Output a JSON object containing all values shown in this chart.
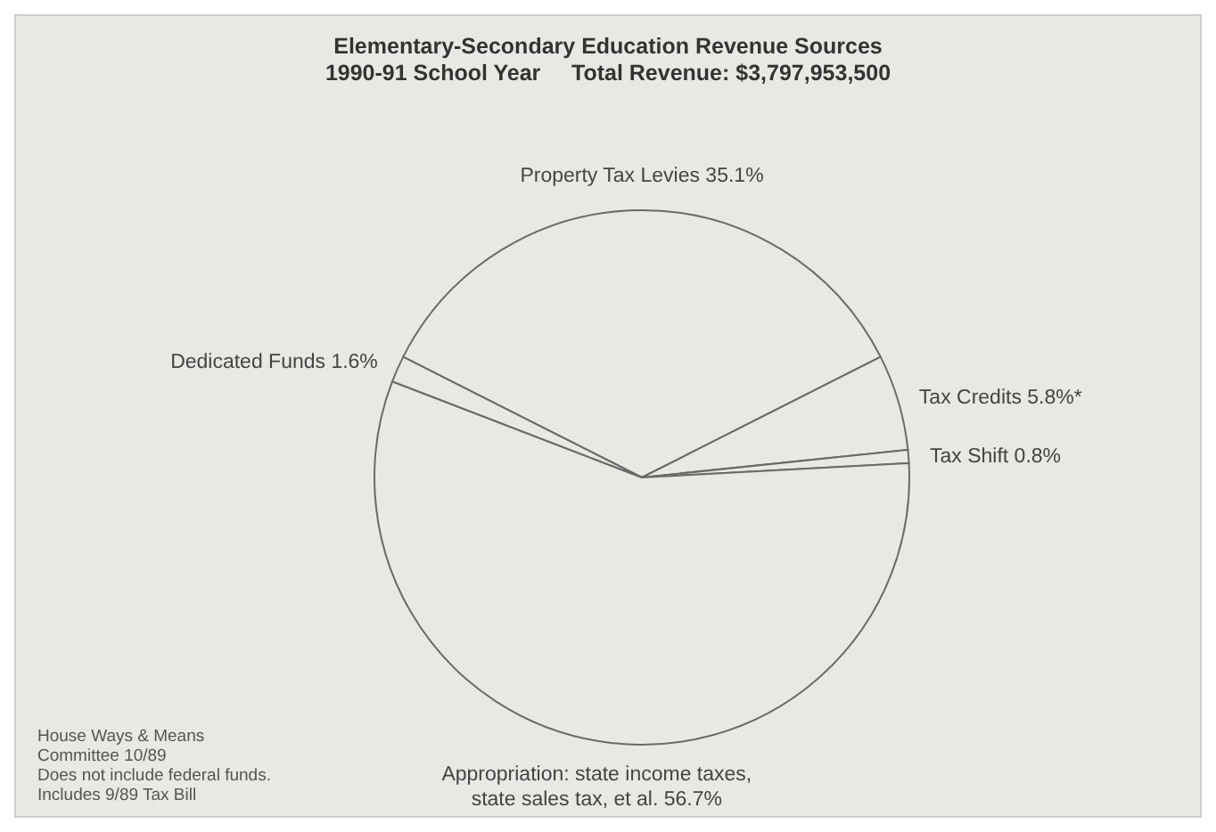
{
  "chart_data": {
    "type": "pie",
    "title": "Elementary-Secondary Education Revenue Sources",
    "subtitle": "1990-91 School Year     Total Revenue: $3,797,953,500",
    "categories": [
      "Property Tax Levies",
      "Tax Credits",
      "Tax Shift",
      "Appropriation: state income taxes, state sales tax, et al.",
      "Dedicated Funds"
    ],
    "values": [
      35.1,
      5.8,
      0.8,
      56.7,
      1.6
    ],
    "value_labels": [
      "35.1%",
      "5.8%*",
      "0.8%",
      "56.7%",
      "1.6%"
    ],
    "colors": [
      "#e9e8e5",
      "#e9e8e5",
      "#e9e8e5",
      "#e9e8e5",
      "#e9e8e5"
    ],
    "annotations": [
      "House Ways & Means",
      "Committee 10/89",
      "Does not include federal funds.",
      "Includes 9/89 Tax Bill"
    ],
    "legend": false
  }
}
